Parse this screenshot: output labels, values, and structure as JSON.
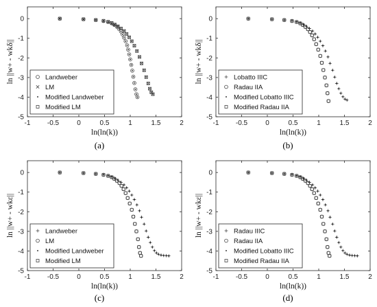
{
  "chart_data": [
    {
      "type": "scatter",
      "caption": "(a)",
      "xlabel": "ln(ln(k))",
      "ylabel": "ln ||w+ - wkδ||",
      "xlim": [
        -1,
        2
      ],
      "ylim": [
        -5,
        0.6
      ],
      "xticks": [
        "-1",
        "-0.5",
        "0",
        "0.5",
        "1",
        "1.5",
        "2"
      ],
      "yticks": [
        "0",
        "-1",
        "-2",
        "-3",
        "-4",
        "-5"
      ],
      "legend_position": "bottom-left",
      "series": [
        {
          "name": "Landweber",
          "marker": "circle",
          "x": [
            -0.37,
            0.09,
            0.33,
            0.48,
            0.57,
            0.64,
            0.69,
            0.74,
            0.78,
            0.82,
            0.85,
            0.88,
            0.91,
            0.94,
            0.96,
            0.98,
            1.0,
            1.02,
            1.04,
            1.06,
            1.08,
            1.1,
            1.12,
            1.14
          ],
          "y": [
            0,
            -0.03,
            -0.07,
            -0.12,
            -0.17,
            -0.24,
            -0.32,
            -0.41,
            -0.52,
            -0.65,
            -0.8,
            -0.97,
            -1.15,
            -1.36,
            -1.58,
            -1.82,
            -2.08,
            -2.36,
            -2.65,
            -2.96,
            -3.28,
            -3.6,
            -3.85,
            -4.0
          ]
        },
        {
          "name": "LM",
          "marker": "x",
          "x": [
            -0.37,
            0.09,
            0.33,
            0.48,
            0.57,
            0.64,
            0.7,
            0.76,
            0.82,
            0.88,
            0.93,
            0.98,
            1.03,
            1.08,
            1.13,
            1.18,
            1.22,
            1.27,
            1.31,
            1.35,
            1.38,
            1.41,
            1.44
          ],
          "y": [
            0,
            -0.03,
            -0.07,
            -0.11,
            -0.16,
            -0.22,
            -0.3,
            -0.39,
            -0.5,
            -0.63,
            -0.78,
            -0.95,
            -1.15,
            -1.38,
            -1.65,
            -1.95,
            -2.28,
            -2.63,
            -2.98,
            -3.3,
            -3.57,
            -3.75,
            -3.85
          ]
        },
        {
          "name": "Modified Landweber",
          "marker": "dot",
          "x": [
            -0.37,
            0.09,
            0.33,
            0.48,
            0.57,
            0.64,
            0.69,
            0.74,
            0.78,
            0.82,
            0.85,
            0.88,
            0.91,
            0.94,
            0.96,
            0.98,
            1.0,
            1.02,
            1.04,
            1.06,
            1.08,
            1.1,
            1.12,
            1.14
          ],
          "y": [
            0,
            -0.03,
            -0.07,
            -0.12,
            -0.17,
            -0.24,
            -0.32,
            -0.41,
            -0.52,
            -0.65,
            -0.8,
            -0.97,
            -1.15,
            -1.36,
            -1.58,
            -1.82,
            -2.08,
            -2.36,
            -2.65,
            -2.96,
            -3.28,
            -3.6,
            -3.85,
            -4.0
          ]
        },
        {
          "name": "Modified LM",
          "marker": "square",
          "x": [
            -0.37,
            0.09,
            0.33,
            0.48,
            0.57,
            0.64,
            0.7,
            0.76,
            0.82,
            0.88,
            0.93,
            0.98,
            1.03,
            1.08,
            1.13,
            1.18,
            1.22,
            1.27,
            1.31,
            1.35,
            1.38,
            1.41,
            1.44
          ],
          "y": [
            0,
            -0.03,
            -0.07,
            -0.11,
            -0.16,
            -0.22,
            -0.3,
            -0.39,
            -0.5,
            -0.63,
            -0.78,
            -0.95,
            -1.15,
            -1.38,
            -1.65,
            -1.95,
            -2.28,
            -2.63,
            -2.98,
            -3.3,
            -3.57,
            -3.75,
            -3.85
          ]
        }
      ]
    },
    {
      "type": "scatter",
      "caption": "(b)",
      "xlabel": "ln(ln(k))",
      "ylabel": "ln ||w+ - wkδ||",
      "xlim": [
        -1,
        2
      ],
      "ylim": [
        -5,
        0.6
      ],
      "xticks": [
        "-1",
        "-0.5",
        "0",
        "0.5",
        "1",
        "1.5",
        "2"
      ],
      "yticks": [
        "0",
        "-1",
        "-2",
        "-3",
        "-4",
        "-5"
      ],
      "legend_position": "bottom-left",
      "series": [
        {
          "name": "Lobatto IIIC",
          "marker": "plus",
          "x": [
            -0.37,
            0.09,
            0.33,
            0.48,
            0.57,
            0.64,
            0.7,
            0.76,
            0.82,
            0.88,
            0.93,
            0.98,
            1.03,
            1.08,
            1.13,
            1.18,
            1.22,
            1.27,
            1.31,
            1.35,
            1.39,
            1.43,
            1.47,
            1.51,
            1.55
          ],
          "y": [
            0,
            -0.03,
            -0.07,
            -0.11,
            -0.16,
            -0.22,
            -0.3,
            -0.39,
            -0.5,
            -0.63,
            -0.78,
            -0.95,
            -1.15,
            -1.38,
            -1.65,
            -1.95,
            -2.28,
            -2.63,
            -2.98,
            -3.3,
            -3.57,
            -3.8,
            -3.98,
            -4.1,
            -4.15
          ]
        },
        {
          "name": "Radau IIA",
          "marker": "circle",
          "x": [
            -0.37,
            0.09,
            0.33,
            0.48,
            0.57,
            0.64,
            0.69,
            0.74,
            0.79,
            0.83,
            0.87,
            0.91,
            0.95,
            0.99,
            1.03,
            1.06,
            1.09,
            1.12,
            1.15,
            1.17,
            1.19
          ],
          "y": [
            0,
            -0.03,
            -0.07,
            -0.12,
            -0.17,
            -0.24,
            -0.32,
            -0.42,
            -0.54,
            -0.68,
            -0.85,
            -1.05,
            -1.3,
            -1.58,
            -1.9,
            -2.25,
            -2.62,
            -3.0,
            -3.4,
            -3.8,
            -4.2
          ]
        },
        {
          "name": "Modified Lobatto IIIC",
          "marker": "dot",
          "x": [
            -0.37,
            0.09,
            0.33,
            0.48,
            0.57,
            0.64,
            0.7,
            0.76,
            0.82,
            0.88,
            0.93,
            0.98,
            1.03,
            1.08,
            1.13,
            1.18,
            1.22,
            1.27,
            1.31,
            1.35,
            1.39,
            1.43,
            1.47,
            1.51,
            1.55
          ],
          "y": [
            0,
            -0.03,
            -0.07,
            -0.11,
            -0.16,
            -0.22,
            -0.3,
            -0.39,
            -0.5,
            -0.63,
            -0.78,
            -0.95,
            -1.15,
            -1.38,
            -1.65,
            -1.95,
            -2.28,
            -2.63,
            -2.98,
            -3.3,
            -3.57,
            -3.8,
            -3.98,
            -4.1,
            -4.15
          ]
        },
        {
          "name": "Modified Radau IIA",
          "marker": "square",
          "x": [
            -0.37,
            0.09,
            0.33,
            0.48,
            0.57,
            0.64,
            0.69,
            0.74,
            0.79,
            0.83,
            0.87,
            0.91,
            0.95,
            0.99,
            1.03,
            1.06,
            1.09,
            1.12,
            1.15,
            1.17,
            1.19
          ],
          "y": [
            0,
            -0.03,
            -0.07,
            -0.12,
            -0.17,
            -0.24,
            -0.32,
            -0.42,
            -0.54,
            -0.68,
            -0.85,
            -1.05,
            -1.3,
            -1.58,
            -1.9,
            -2.25,
            -2.62,
            -3.0,
            -3.4,
            -3.8,
            -4.2
          ]
        }
      ]
    },
    {
      "type": "scatter",
      "caption": "(c)",
      "xlabel": "ln(ln(k))",
      "ylabel": "ln ||w+ - wkε||",
      "xlim": [
        -1,
        2
      ],
      "ylim": [
        -5,
        0.6
      ],
      "xticks": [
        "-1",
        "-0.5",
        "0",
        "0.5",
        "1",
        "1.5",
        "2"
      ],
      "yticks": [
        "0",
        "-1",
        "-2",
        "-3",
        "-4",
        "-5"
      ],
      "legend_position": "bottom-left",
      "series": [
        {
          "name": "Landweber",
          "marker": "plus",
          "x": [
            -0.37,
            0.09,
            0.33,
            0.48,
            0.57,
            0.64,
            0.7,
            0.76,
            0.82,
            0.88,
            0.93,
            0.98,
            1.03,
            1.08,
            1.13,
            1.18,
            1.22,
            1.27,
            1.31,
            1.35,
            1.39,
            1.43,
            1.47,
            1.51,
            1.55,
            1.6,
            1.65,
            1.7,
            1.75
          ],
          "y": [
            0,
            -0.03,
            -0.07,
            -0.11,
            -0.16,
            -0.22,
            -0.3,
            -0.39,
            -0.5,
            -0.63,
            -0.78,
            -0.95,
            -1.15,
            -1.38,
            -1.65,
            -1.95,
            -2.28,
            -2.63,
            -2.98,
            -3.3,
            -3.57,
            -3.8,
            -3.98,
            -4.1,
            -4.17,
            -4.21,
            -4.23,
            -4.24,
            -4.25
          ]
        },
        {
          "name": "LM",
          "marker": "circle",
          "x": [
            -0.37,
            0.09,
            0.33,
            0.48,
            0.57,
            0.64,
            0.69,
            0.74,
            0.79,
            0.83,
            0.87,
            0.91,
            0.95,
            0.99,
            1.03,
            1.06,
            1.09,
            1.12,
            1.15,
            1.17,
            1.19,
            1.21
          ],
          "y": [
            0,
            -0.03,
            -0.07,
            -0.12,
            -0.17,
            -0.24,
            -0.32,
            -0.42,
            -0.54,
            -0.68,
            -0.85,
            -1.05,
            -1.3,
            -1.58,
            -1.9,
            -2.25,
            -2.62,
            -3.0,
            -3.4,
            -3.8,
            -4.1,
            -4.25
          ]
        },
        {
          "name": "Modified Landweber",
          "marker": "dot",
          "x": [
            -0.37,
            0.09,
            0.33,
            0.48,
            0.57,
            0.64,
            0.7,
            0.76,
            0.82,
            0.88,
            0.93,
            0.98,
            1.03,
            1.08,
            1.13,
            1.18,
            1.22,
            1.27,
            1.31,
            1.35,
            1.39,
            1.43,
            1.47,
            1.51,
            1.55,
            1.6,
            1.65,
            1.7,
            1.75
          ],
          "y": [
            0,
            -0.03,
            -0.07,
            -0.11,
            -0.16,
            -0.22,
            -0.3,
            -0.39,
            -0.5,
            -0.63,
            -0.78,
            -0.95,
            -1.15,
            -1.38,
            -1.65,
            -1.95,
            -2.28,
            -2.63,
            -2.98,
            -3.3,
            -3.57,
            -3.8,
            -3.98,
            -4.1,
            -4.17,
            -4.21,
            -4.23,
            -4.24,
            -4.25
          ]
        },
        {
          "name": "Modified LM",
          "marker": "square",
          "x": [
            -0.37,
            0.09,
            0.33,
            0.48,
            0.57,
            0.64,
            0.69,
            0.74,
            0.79,
            0.83,
            0.87,
            0.91,
            0.95,
            0.99,
            1.03,
            1.06,
            1.09,
            1.12,
            1.15,
            1.17,
            1.19,
            1.21
          ],
          "y": [
            0,
            -0.03,
            -0.07,
            -0.12,
            -0.17,
            -0.24,
            -0.32,
            -0.42,
            -0.54,
            -0.68,
            -0.85,
            -1.05,
            -1.3,
            -1.58,
            -1.9,
            -2.25,
            -2.62,
            -3.0,
            -3.4,
            -3.8,
            -4.1,
            -4.25
          ]
        }
      ]
    },
    {
      "type": "scatter",
      "caption": "(d)",
      "xlabel": "ln(ln(k))",
      "ylabel": "ln ||w+ - wkε||",
      "xlim": [
        -1,
        2
      ],
      "ylim": [
        -5,
        0.6
      ],
      "xticks": [
        "-1",
        "-0.5",
        "0",
        "0.5",
        "1",
        "1.5",
        "2"
      ],
      "yticks": [
        "0",
        "-1",
        "-2",
        "-3",
        "-4",
        "-5"
      ],
      "legend_position": "bottom-left",
      "series": [
        {
          "name": "Radau IIIC",
          "marker": "plus",
          "x": [
            -0.37,
            0.09,
            0.33,
            0.48,
            0.57,
            0.64,
            0.7,
            0.76,
            0.82,
            0.88,
            0.93,
            0.98,
            1.03,
            1.08,
            1.13,
            1.18,
            1.22,
            1.27,
            1.31,
            1.35,
            1.39,
            1.43,
            1.47,
            1.51,
            1.55,
            1.6,
            1.65,
            1.7,
            1.75
          ],
          "y": [
            0,
            -0.03,
            -0.07,
            -0.11,
            -0.16,
            -0.22,
            -0.3,
            -0.39,
            -0.5,
            -0.63,
            -0.78,
            -0.95,
            -1.15,
            -1.38,
            -1.65,
            -1.95,
            -2.28,
            -2.63,
            -2.98,
            -3.3,
            -3.57,
            -3.8,
            -3.98,
            -4.1,
            -4.17,
            -4.21,
            -4.23,
            -4.24,
            -4.25
          ]
        },
        {
          "name": "Radau IIA",
          "marker": "circle",
          "x": [
            -0.37,
            0.09,
            0.33,
            0.48,
            0.57,
            0.64,
            0.69,
            0.74,
            0.79,
            0.83,
            0.87,
            0.91,
            0.95,
            0.99,
            1.03,
            1.06,
            1.09,
            1.12,
            1.15,
            1.17,
            1.19,
            1.21
          ],
          "y": [
            0,
            -0.03,
            -0.07,
            -0.12,
            -0.17,
            -0.24,
            -0.32,
            -0.42,
            -0.54,
            -0.68,
            -0.85,
            -1.05,
            -1.3,
            -1.58,
            -1.9,
            -2.25,
            -2.62,
            -3.0,
            -3.4,
            -3.8,
            -4.1,
            -4.25
          ]
        },
        {
          "name": "Modified Lobatto IIIC",
          "marker": "dot",
          "x": [
            -0.37,
            0.09,
            0.33,
            0.48,
            0.57,
            0.64,
            0.7,
            0.76,
            0.82,
            0.88,
            0.93,
            0.98,
            1.03,
            1.08,
            1.13,
            1.18,
            1.22,
            1.27,
            1.31,
            1.35,
            1.39,
            1.43,
            1.47,
            1.51,
            1.55,
            1.6,
            1.65,
            1.7,
            1.75
          ],
          "y": [
            0,
            -0.03,
            -0.07,
            -0.11,
            -0.16,
            -0.22,
            -0.3,
            -0.39,
            -0.5,
            -0.63,
            -0.78,
            -0.95,
            -1.15,
            -1.38,
            -1.65,
            -1.95,
            -2.28,
            -2.63,
            -2.98,
            -3.3,
            -3.57,
            -3.8,
            -3.98,
            -4.1,
            -4.17,
            -4.21,
            -4.23,
            -4.24,
            -4.25
          ]
        },
        {
          "name": "Modified Radau IIA",
          "marker": "square",
          "x": [
            -0.37,
            0.09,
            0.33,
            0.48,
            0.57,
            0.64,
            0.69,
            0.74,
            0.79,
            0.83,
            0.87,
            0.91,
            0.95,
            0.99,
            1.03,
            1.06,
            1.09,
            1.12,
            1.15,
            1.17,
            1.19,
            1.21
          ],
          "y": [
            0,
            -0.03,
            -0.07,
            -0.12,
            -0.17,
            -0.24,
            -0.32,
            -0.42,
            -0.54,
            -0.68,
            -0.85,
            -1.05,
            -1.3,
            -1.58,
            -1.9,
            -2.25,
            -2.62,
            -3.0,
            -3.4,
            -3.8,
            -4.1,
            -4.25
          ]
        }
      ]
    }
  ]
}
